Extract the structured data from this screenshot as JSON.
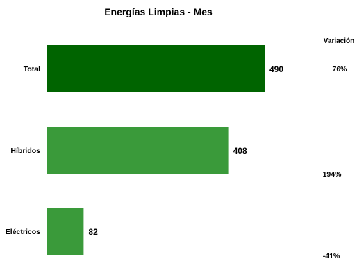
{
  "chart_data": {
    "type": "bar",
    "orientation": "horizontal",
    "title": "Energías  Limpias - Mes",
    "categories": [
      "Total",
      "Híbridos",
      "Eléctricos"
    ],
    "values": [
      490,
      408,
      82
    ],
    "xlim": [
      0,
      500
    ],
    "grid": false,
    "legend": "none",
    "bar_colors": [
      "#006400",
      "#3a9a3a",
      "#3a9a3a"
    ],
    "variation": {
      "header": "Variación",
      "values": [
        "76%",
        "194%",
        "-41%"
      ]
    }
  }
}
